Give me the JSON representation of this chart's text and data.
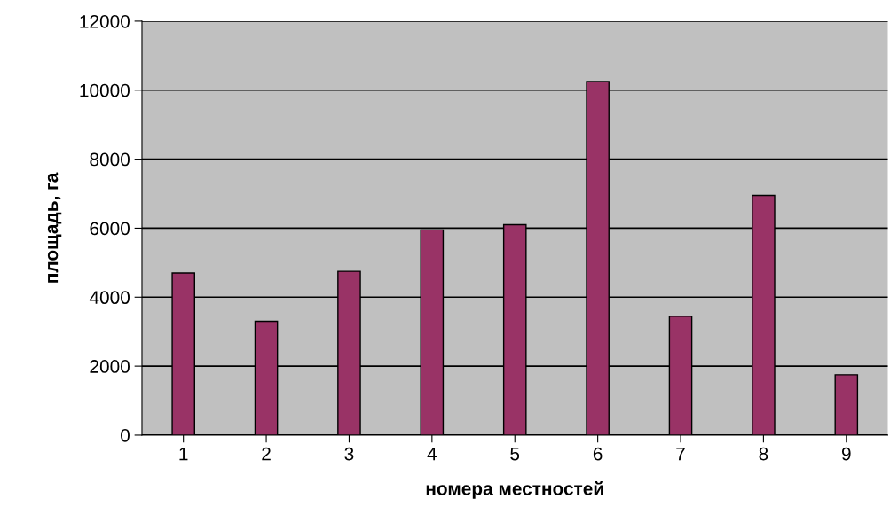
{
  "chart_data": {
    "type": "bar",
    "xlabel": "номера местностей",
    "ylabel": "площадь, га",
    "categories": [
      "1",
      "2",
      "3",
      "4",
      "5",
      "6",
      "7",
      "8",
      "9"
    ],
    "values": [
      4700,
      3300,
      4750,
      5950,
      6100,
      10250,
      3450,
      6950,
      1750
    ],
    "color": "#993366",
    "ylim": [
      0,
      12000
    ],
    "yticks": [
      0,
      2000,
      4000,
      6000,
      8000,
      10000,
      12000
    ],
    "grid": "y",
    "legend": false
  }
}
